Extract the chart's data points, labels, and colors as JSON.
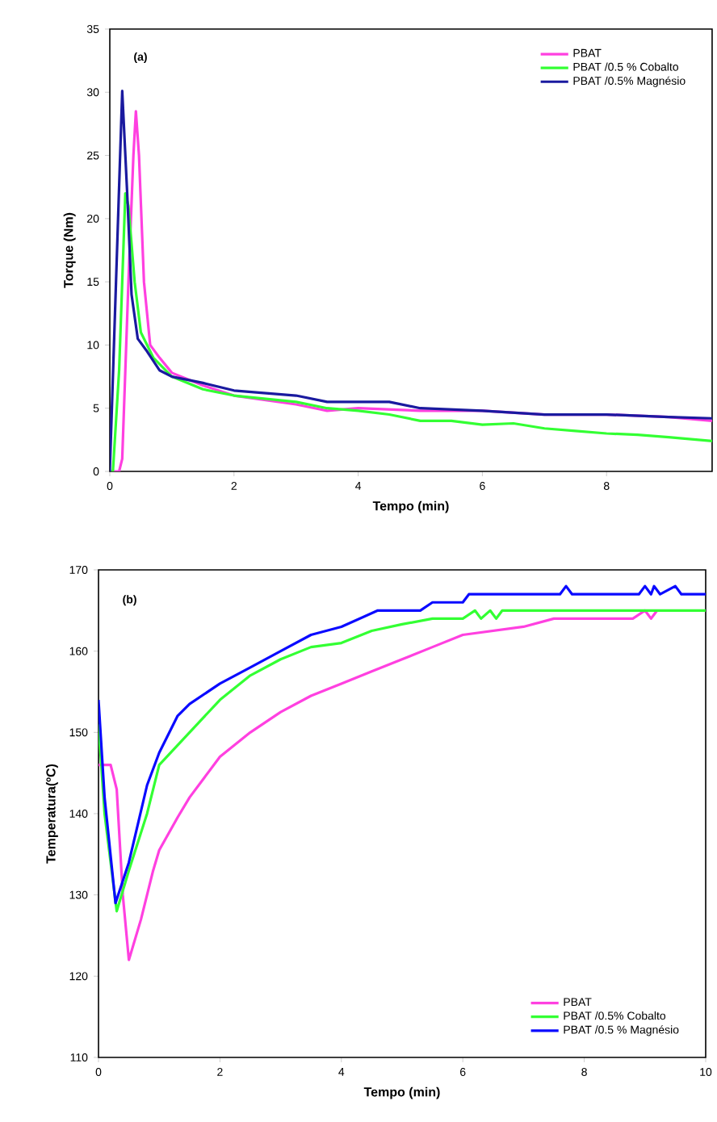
{
  "chart_data": [
    {
      "type": "line",
      "xlabel": "Tempo (min)",
      "ylabel": "Torque (Nm)",
      "annotations": [
        "(a)"
      ],
      "xlim": [
        0,
        9.7
      ],
      "xticks": [
        0,
        2,
        4,
        6,
        8
      ],
      "ylim": [
        0,
        35
      ],
      "yticks": [
        0,
        5,
        10,
        15,
        20,
        25,
        30,
        35
      ],
      "legend": "top right",
      "series": [
        {
          "name": "PBAT",
          "color": "#ff40e0",
          "x": [
            0,
            0.15,
            0.2,
            0.3,
            0.38,
            0.42,
            0.47,
            0.55,
            0.65,
            0.8,
            1,
            1.5,
            2,
            3,
            3.5,
            4,
            5,
            6,
            7,
            8,
            9,
            9.7
          ],
          "values": [
            0,
            0,
            1,
            15,
            25,
            28.5,
            25,
            15,
            10,
            9,
            7.8,
            6.8,
            6,
            5.3,
            4.8,
            5,
            4.8,
            4.8,
            4.5,
            4.5,
            4.3,
            4.0
          ]
        },
        {
          "name": "PBAT /0.5 % Cobalto",
          "color": "#33ff33",
          "x": [
            0,
            0.05,
            0.15,
            0.25,
            0.3,
            0.4,
            0.5,
            0.7,
            1,
            1.5,
            2,
            3,
            3.5,
            4,
            4.5,
            5,
            5.5,
            6,
            6.5,
            7,
            7.5,
            8,
            8.5,
            9,
            9.7
          ],
          "values": [
            0,
            0,
            8,
            22,
            21,
            15,
            11,
            9,
            7.5,
            6.5,
            6,
            5.5,
            5,
            4.8,
            4.5,
            4,
            4,
            3.7,
            3.8,
            3.4,
            3.2,
            3,
            2.9,
            2.7,
            2.4
          ]
        },
        {
          "name": "PBAT /0.5% Magnésio",
          "color": "#1a1a9f",
          "x": [
            0,
            0.1,
            0.2,
            0.28,
            0.35,
            0.45,
            0.6,
            0.8,
            1,
            1.5,
            2,
            3,
            3.5,
            4,
            4.5,
            5,
            6,
            7,
            8,
            9,
            9.7
          ],
          "values": [
            0,
            15,
            30.1,
            22,
            14,
            10.5,
            9.5,
            8,
            7.5,
            7,
            6.4,
            6,
            5.5,
            5.5,
            5.5,
            5,
            4.8,
            4.5,
            4.5,
            4.3,
            4.2
          ]
        }
      ]
    },
    {
      "type": "line",
      "xlabel": "Tempo (min)",
      "ylabel": "Temperatura(ºC)",
      "annotations": [
        "(b)"
      ],
      "xlim": [
        0,
        10
      ],
      "xticks": [
        0,
        2,
        4,
        6,
        8,
        10
      ],
      "ylim": [
        110,
        170
      ],
      "yticks": [
        110,
        120,
        130,
        140,
        150,
        160,
        170
      ],
      "legend": "bottom right",
      "series": [
        {
          "name": "PBAT",
          "color": "#ff40e0",
          "x": [
            0,
            0.2,
            0.3,
            0.4,
            0.5,
            0.7,
            0.9,
            1,
            1.3,
            1.5,
            2,
            2.5,
            3,
            3.5,
            4,
            4.5,
            5,
            5.5,
            6,
            6.5,
            7,
            7.5,
            8.8,
            9,
            9.1,
            9.2
          ],
          "values": [
            146,
            146,
            143,
            130,
            122,
            127,
            133,
            135.5,
            139.5,
            142,
            147,
            150,
            152.5,
            154.5,
            156,
            157.5,
            159,
            160.5,
            162,
            162.5,
            163,
            164,
            164,
            165,
            164,
            165
          ]
        },
        {
          "name": "PBAT /0.5% Cobalto",
          "color": "#33ff33",
          "x": [
            0,
            0.1,
            0.3,
            0.5,
            0.8,
            1,
            1.5,
            2,
            2.5,
            3,
            3.5,
            4,
            4.5,
            5,
            5.5,
            6,
            6.2,
            6.3,
            6.45,
            6.55,
            6.65,
            10
          ],
          "values": [
            151,
            140,
            128,
            133,
            140,
            146,
            150,
            154,
            157,
            159,
            160.5,
            161,
            162.5,
            163.3,
            164,
            164,
            165,
            164,
            165,
            164,
            165,
            165
          ]
        },
        {
          "name": "PBAT /0.5 % Magnésio",
          "color": "#0a0aff",
          "x": [
            0,
            0.1,
            0.28,
            0.5,
            0.8,
            1,
            1.3,
            1.5,
            2,
            2.5,
            3,
            3.5,
            4,
            4.6,
            5.3,
            5.5,
            6,
            6.1,
            7.6,
            7.7,
            7.8,
            8.9,
            9,
            9.1,
            9.15,
            9.25,
            9.5,
            9.6,
            10
          ],
          "values": [
            154,
            142,
            129,
            134,
            143.5,
            147.5,
            152,
            153.5,
            156,
            158,
            160,
            162,
            163,
            165,
            165,
            166,
            166,
            167,
            167,
            168,
            167,
            167,
            168,
            167,
            168,
            167,
            168,
            167,
            167
          ]
        }
      ]
    }
  ]
}
